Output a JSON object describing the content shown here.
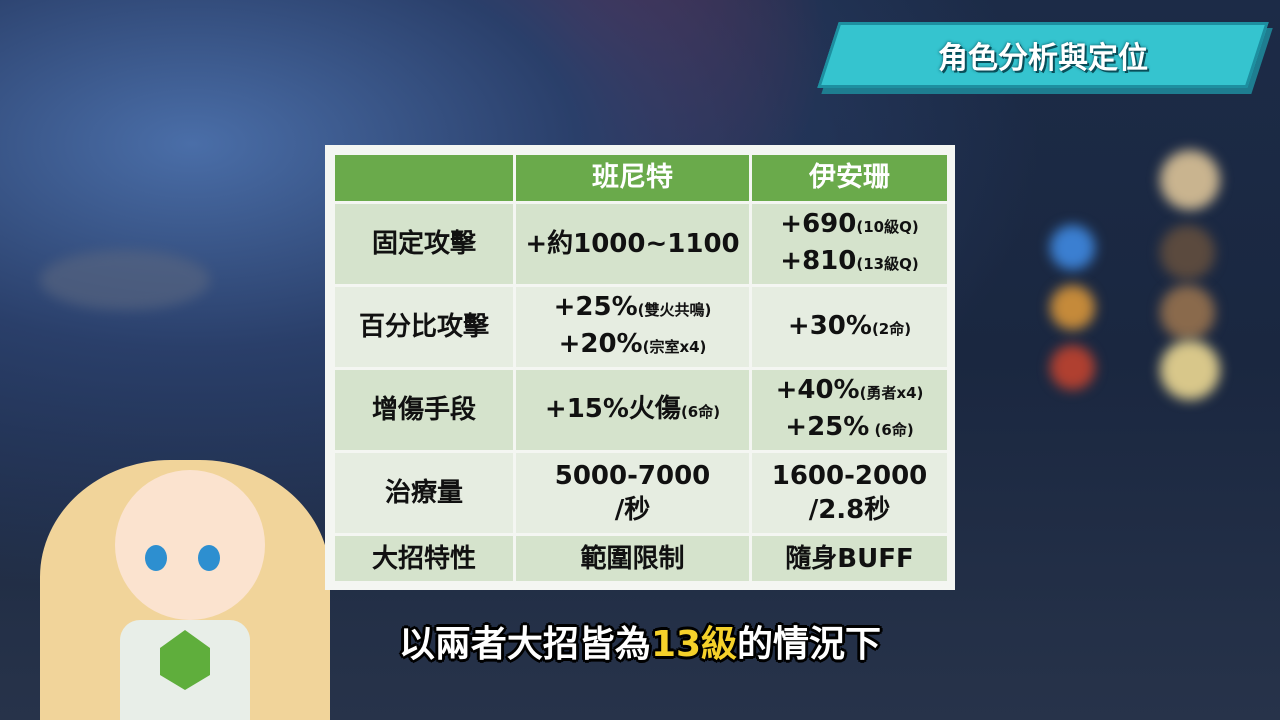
{
  "title_badge": "角色分析與定位",
  "table": {
    "headers": [
      "",
      "班尼特",
      "伊安珊"
    ],
    "rows": [
      {
        "label": "固定攻擊",
        "bennett": [
          {
            "main": "+約1000~1100",
            "note": ""
          }
        ],
        "yanfei": [
          {
            "main": "+690",
            "note": "(10級Q)"
          },
          {
            "main": "+810",
            "note": "(13級Q)"
          }
        ]
      },
      {
        "label": "百分比攻擊",
        "bennett": [
          {
            "main": "+25%",
            "note": "(雙火共鳴)"
          },
          {
            "main": "+20%",
            "note": "(宗室x4)"
          }
        ],
        "yanfei": [
          {
            "main": "+30%",
            "note": "(2命)"
          }
        ]
      },
      {
        "label": "增傷手段",
        "bennett": [
          {
            "main": "+15%火傷",
            "note": "(6命)"
          }
        ],
        "yanfei": [
          {
            "main": "+40%",
            "note": "(勇者x4)"
          },
          {
            "main": "+25%",
            "note": " (6命)"
          }
        ]
      },
      {
        "label": "治療量",
        "bennett": [
          {
            "main": "5000-7000",
            "note": ""
          },
          {
            "main": "/秒",
            "note": ""
          }
        ],
        "yanfei": [
          {
            "main": "1600-2000",
            "note": ""
          },
          {
            "main": "/2.8秒",
            "note": ""
          }
        ]
      },
      {
        "label": "大招特性",
        "bennett": [
          {
            "main": "範圍限制",
            "note": ""
          }
        ],
        "yanfei": [
          {
            "main": "隨身BUFF",
            "note": ""
          }
        ]
      }
    ]
  },
  "caption": {
    "before": "以兩者大招皆為",
    "highlight": "13級",
    "after": "的情況下"
  },
  "colors": {
    "header_green": "#6aaa4b",
    "row_dark": "#d5e3cc",
    "row_light": "#e6ede1",
    "badge": "#35c4cf",
    "highlight": "#f5d12a"
  }
}
